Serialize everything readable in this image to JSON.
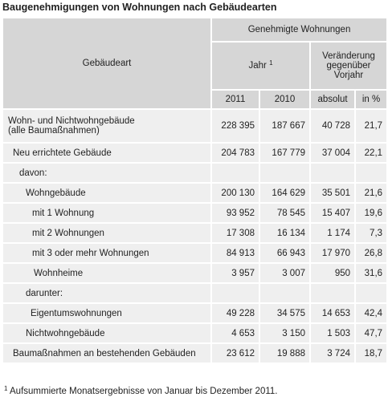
{
  "header": {
    "title": "Baugenehmigungen von Wohnungen nach Gebäudearten"
  },
  "table": {
    "row_header": "Gebäudeart",
    "group": "Genehmigte Wohnungen",
    "year": "Jahr",
    "year_note": "1",
    "change": "Veränderung gegenüber Vorjahr",
    "columns": [
      "2011",
      "2010",
      "absolut",
      "in %"
    ],
    "rows": [
      {
        "label": "Wohn- und Nichtwohngebäude",
        "label2": "(alle Baumaßnahmen)",
        "values": [
          "228 395",
          "187 667",
          "40 728",
          "21,7"
        ]
      },
      {
        "label": "Neu errichtete Gebäude",
        "values": [
          "204 783",
          "167 779",
          "37 004",
          "22,1"
        ]
      },
      {
        "label": "davon:",
        "values": []
      },
      {
        "label": "Wohngebäude",
        "values": [
          "200 130",
          "164 629",
          "35 501",
          "21,6"
        ]
      },
      {
        "label": "mit 1 Wohnung",
        "values": [
          "93 952",
          "78 545",
          "15 407",
          "19,6"
        ]
      },
      {
        "label": "mit 2 Wohnungen",
        "values": [
          "17 308",
          "16 134",
          "1 174",
          "7,3"
        ]
      },
      {
        "label": "mit 3 oder mehr Wohnungen",
        "values": [
          "84 913",
          "66 943",
          "17 970",
          "26,8"
        ]
      },
      {
        "label": "Wohnheime",
        "values": [
          "3 957",
          "3 007",
          "950",
          "31,6"
        ]
      },
      {
        "label": "darunter:",
        "values": []
      },
      {
        "label": "Eigentumswohnungen",
        "values": [
          "49 228",
          "34 575",
          "14 653",
          "42,4"
        ]
      },
      {
        "label": "Nichtwohngebäude",
        "values": [
          "4 653",
          "3 150",
          "1 503",
          "47,7"
        ]
      },
      {
        "label": "Baumaßnahmen an bestehenden Gebäuden",
        "values": [
          "23 612",
          "19 888",
          "3 724",
          "18,7"
        ]
      }
    ]
  },
  "footnote": {
    "marker": "1",
    "text": "Aufsummierte Monatsergebnisse von Januar bis Dezember 2011."
  }
}
